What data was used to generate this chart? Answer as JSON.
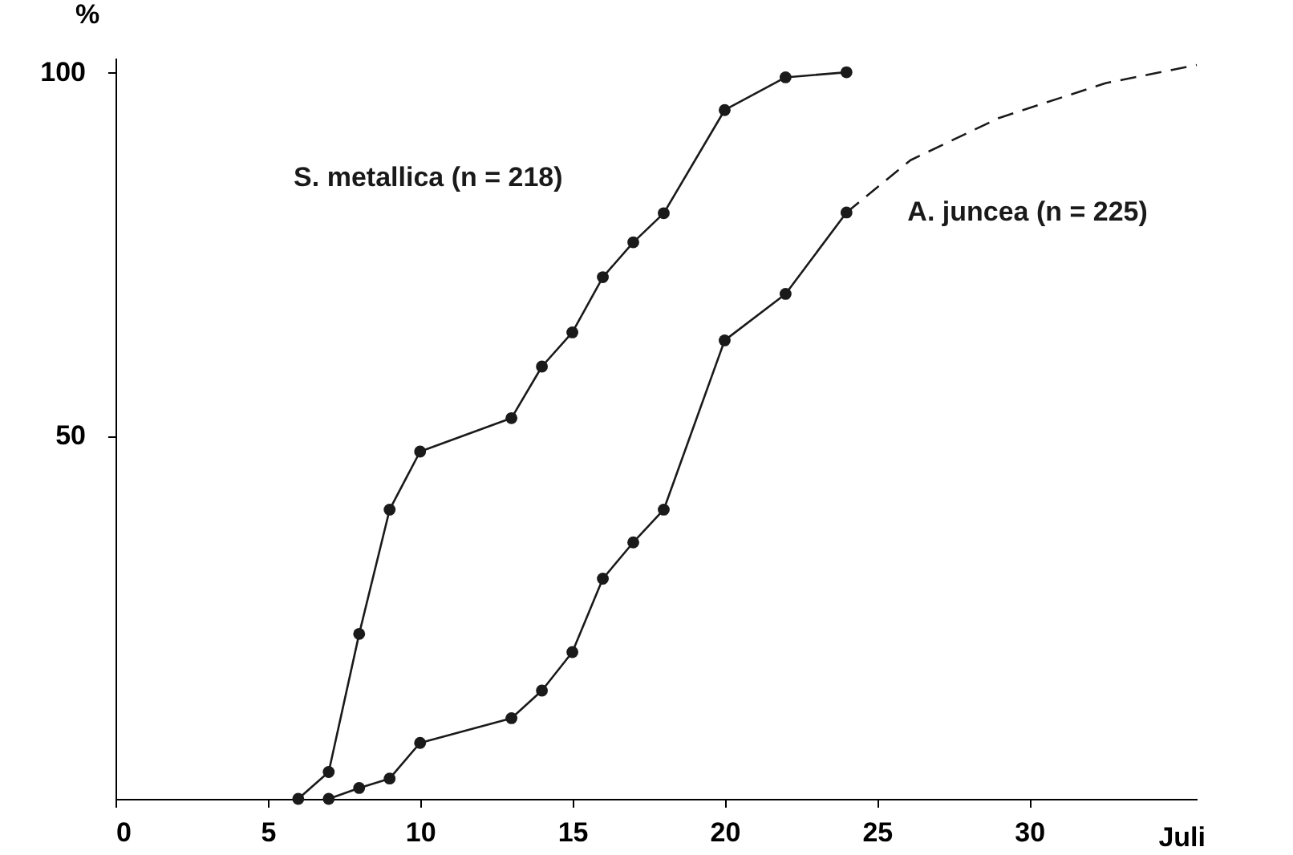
{
  "chart_data": {
    "type": "line",
    "xlabel": "Juli",
    "ylabel": "%",
    "xlim": [
      0,
      35.5
    ],
    "ylim": [
      0,
      102
    ],
    "xticks": [
      0,
      5,
      10,
      15,
      20,
      25,
      30
    ],
    "yticks": [
      50,
      100
    ],
    "grid": false,
    "marker": "circle",
    "line_style": "solid",
    "series": [
      {
        "name": "S. metallica (n = 218)",
        "color": "#1a1a1a",
        "x": [
          6,
          7,
          8,
          9,
          10,
          13,
          14,
          15,
          16,
          17,
          18,
          20,
          22,
          24
        ],
        "values": [
          0,
          3.7,
          22.7,
          39.8,
          47.8,
          52.4,
          59.5,
          64.2,
          71.8,
          76.6,
          80.6,
          94.8,
          99.3,
          100
        ]
      },
      {
        "name": "A. juncea (n = 225)",
        "color": "#1a1a1a",
        "x": [
          7,
          8,
          9,
          10,
          13,
          14,
          15,
          16,
          17,
          18,
          20,
          22,
          24
        ],
        "values": [
          0,
          1.5,
          2.8,
          7.7,
          11.1,
          14.9,
          20.2,
          30.3,
          35.3,
          39.8,
          63.1,
          69.5,
          80.7
        ]
      },
      {
        "color": "#1a1a1a",
        "marker": "none",
        "line_style": "dashed",
        "x": [
          24,
          26.1,
          29,
          32.5,
          35.5
        ],
        "values": [
          80.7,
          87.9,
          93.7,
          98.5,
          101
        ]
      }
    ]
  }
}
